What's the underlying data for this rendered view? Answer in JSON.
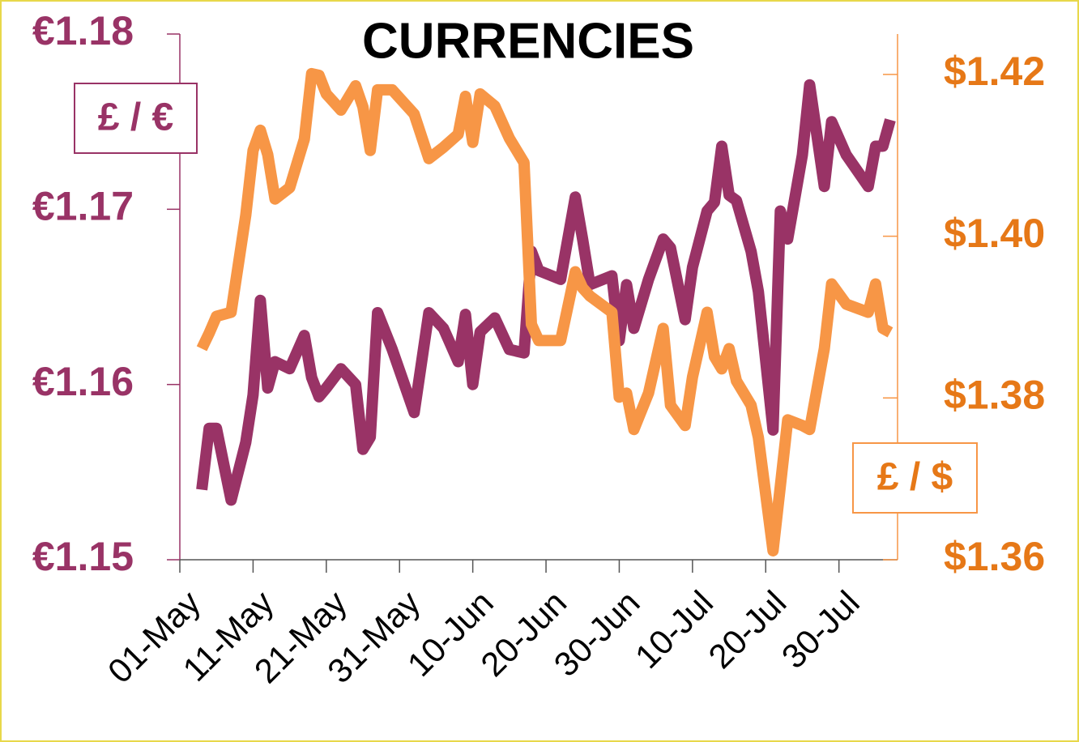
{
  "chart_data": {
    "type": "line",
    "title": "CURRENCIES",
    "x": [
      "04-May",
      "05-May",
      "06-May",
      "08-May",
      "10-May",
      "11-May",
      "12-May",
      "13-May",
      "14-May",
      "16-May",
      "18-May",
      "19-May",
      "20-May",
      "21-May",
      "23-May",
      "25-May",
      "26-May",
      "27-May",
      "28-May",
      "30-May",
      "02-Jun",
      "04-Jun",
      "06-Jun",
      "08-Jun",
      "09-Jun",
      "10-Jun",
      "11-Jun",
      "13-Jun",
      "15-Jun",
      "17-Jun",
      "18-Jun",
      "19-Jun",
      "22-Jun",
      "24-Jun",
      "25-Jun",
      "26-Jun",
      "29-Jun",
      "30-Jun",
      "01-Jul",
      "02-Jul",
      "04-Jul",
      "06-Jul",
      "07-Jul",
      "09-Jul",
      "10-Jul",
      "12-Jul",
      "13-Jul",
      "14-Jul",
      "15-Jul",
      "16-Jul",
      "18-Jul",
      "19-Jul",
      "21-Jul",
      "22-Jul",
      "23-Jul",
      "25-Jul",
      "26-Jul",
      "28-Jul",
      "29-Jul",
      "31-Jul",
      "03-Aug",
      "04-Aug",
      "05-Aug",
      "06-Aug"
    ],
    "series": [
      {
        "name": "£ / €",
        "color": "#993366",
        "axis": "y",
        "values": [
          1.154,
          1.1575,
          1.1575,
          1.1534,
          1.1567,
          1.1594,
          1.1648,
          1.1598,
          1.1613,
          1.1609,
          1.1628,
          1.1604,
          1.1593,
          1.1598,
          1.1609,
          1.16,
          1.1563,
          1.157,
          1.1641,
          1.162,
          1.1584,
          1.1641,
          1.1632,
          1.1613,
          1.164,
          1.16,
          1.163,
          1.1638,
          1.162,
          1.1618,
          1.1676,
          1.1665,
          1.166,
          1.1707,
          1.1683,
          1.1657,
          1.1662,
          1.1625,
          1.1657,
          1.1632,
          1.166,
          1.1683,
          1.1678,
          1.1637,
          1.1667,
          1.1699,
          1.1704,
          1.1736,
          1.1708,
          1.1705,
          1.1676,
          1.1653,
          1.1574,
          1.1699,
          1.1683,
          1.1731,
          1.1771,
          1.1713,
          1.175,
          1.1731,
          1.1713,
          1.1736,
          1.1736,
          1.1751
        ]
      },
      {
        "name": "£ / $",
        "color": "#f79646",
        "axis": "y2",
        "values": [
          1.3861,
          1.388,
          1.3901,
          1.3906,
          1.4026,
          1.4106,
          1.4131,
          1.4101,
          1.4046,
          1.406,
          1.412,
          1.4201,
          1.4199,
          1.4176,
          1.4156,
          1.4186,
          1.416,
          1.4106,
          1.4181,
          1.4181,
          1.4151,
          1.4096,
          1.411,
          1.4126,
          1.4173,
          1.4116,
          1.4176,
          1.4161,
          1.4121,
          1.4091,
          1.3891,
          1.3871,
          1.3871,
          1.3956,
          1.3936,
          1.3926,
          1.3906,
          1.3801,
          1.3806,
          1.3761,
          1.3806,
          1.3886,
          1.3791,
          1.3766,
          1.3826,
          1.3906,
          1.3851,
          1.3836,
          1.3861,
          1.3821,
          1.3791,
          1.3751,
          1.3611,
          1.3691,
          1.3773,
          1.3766,
          1.3761,
          1.3861,
          1.3941,
          1.3916,
          1.3906,
          1.3941,
          1.3886,
          1.3881
        ]
      }
    ],
    "xlim": [
      "01-May",
      "07-Aug"
    ],
    "xticks": [
      "01-May",
      "11-May",
      "21-May",
      "31-May",
      "10-Jun",
      "20-Jun",
      "30-Jun",
      "10-Jul",
      "20-Jul",
      "30-Jul"
    ],
    "ylim": [
      1.15,
      1.18
    ],
    "yticks": [
      {
        "value": 1.15,
        "label": "€1.15"
      },
      {
        "value": 1.16,
        "label": "€1.16"
      },
      {
        "value": 1.17,
        "label": "€1.17"
      },
      {
        "value": 1.18,
        "label": "€1.18"
      }
    ],
    "y2lim": [
      1.36,
      1.425
    ],
    "y2ticks": [
      {
        "value": 1.36,
        "label": "$1.36"
      },
      {
        "value": 1.38,
        "label": "$1.38"
      },
      {
        "value": 1.4,
        "label": "$1.40"
      },
      {
        "value": 1.42,
        "label": "$1.42"
      }
    ],
    "y_label_color": "#993366",
    "y2_label_color": "#e67817"
  }
}
